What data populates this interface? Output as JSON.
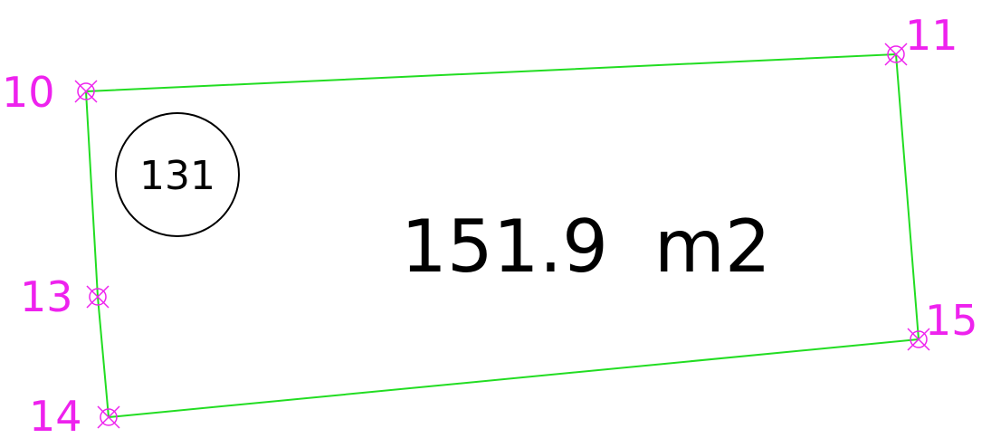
{
  "parcel": {
    "id": "131",
    "area_text": "151.9  m2"
  },
  "points": [
    {
      "key": "p10",
      "label": "10"
    },
    {
      "key": "p11",
      "label": "11"
    },
    {
      "key": "p13",
      "label": "13"
    },
    {
      "key": "p14",
      "label": "14"
    },
    {
      "key": "p15",
      "label": "15"
    }
  ],
  "colors": {
    "boundary": "#22dd22",
    "point": "#ee22ee",
    "text": "#000000",
    "background": "#ffffff"
  }
}
